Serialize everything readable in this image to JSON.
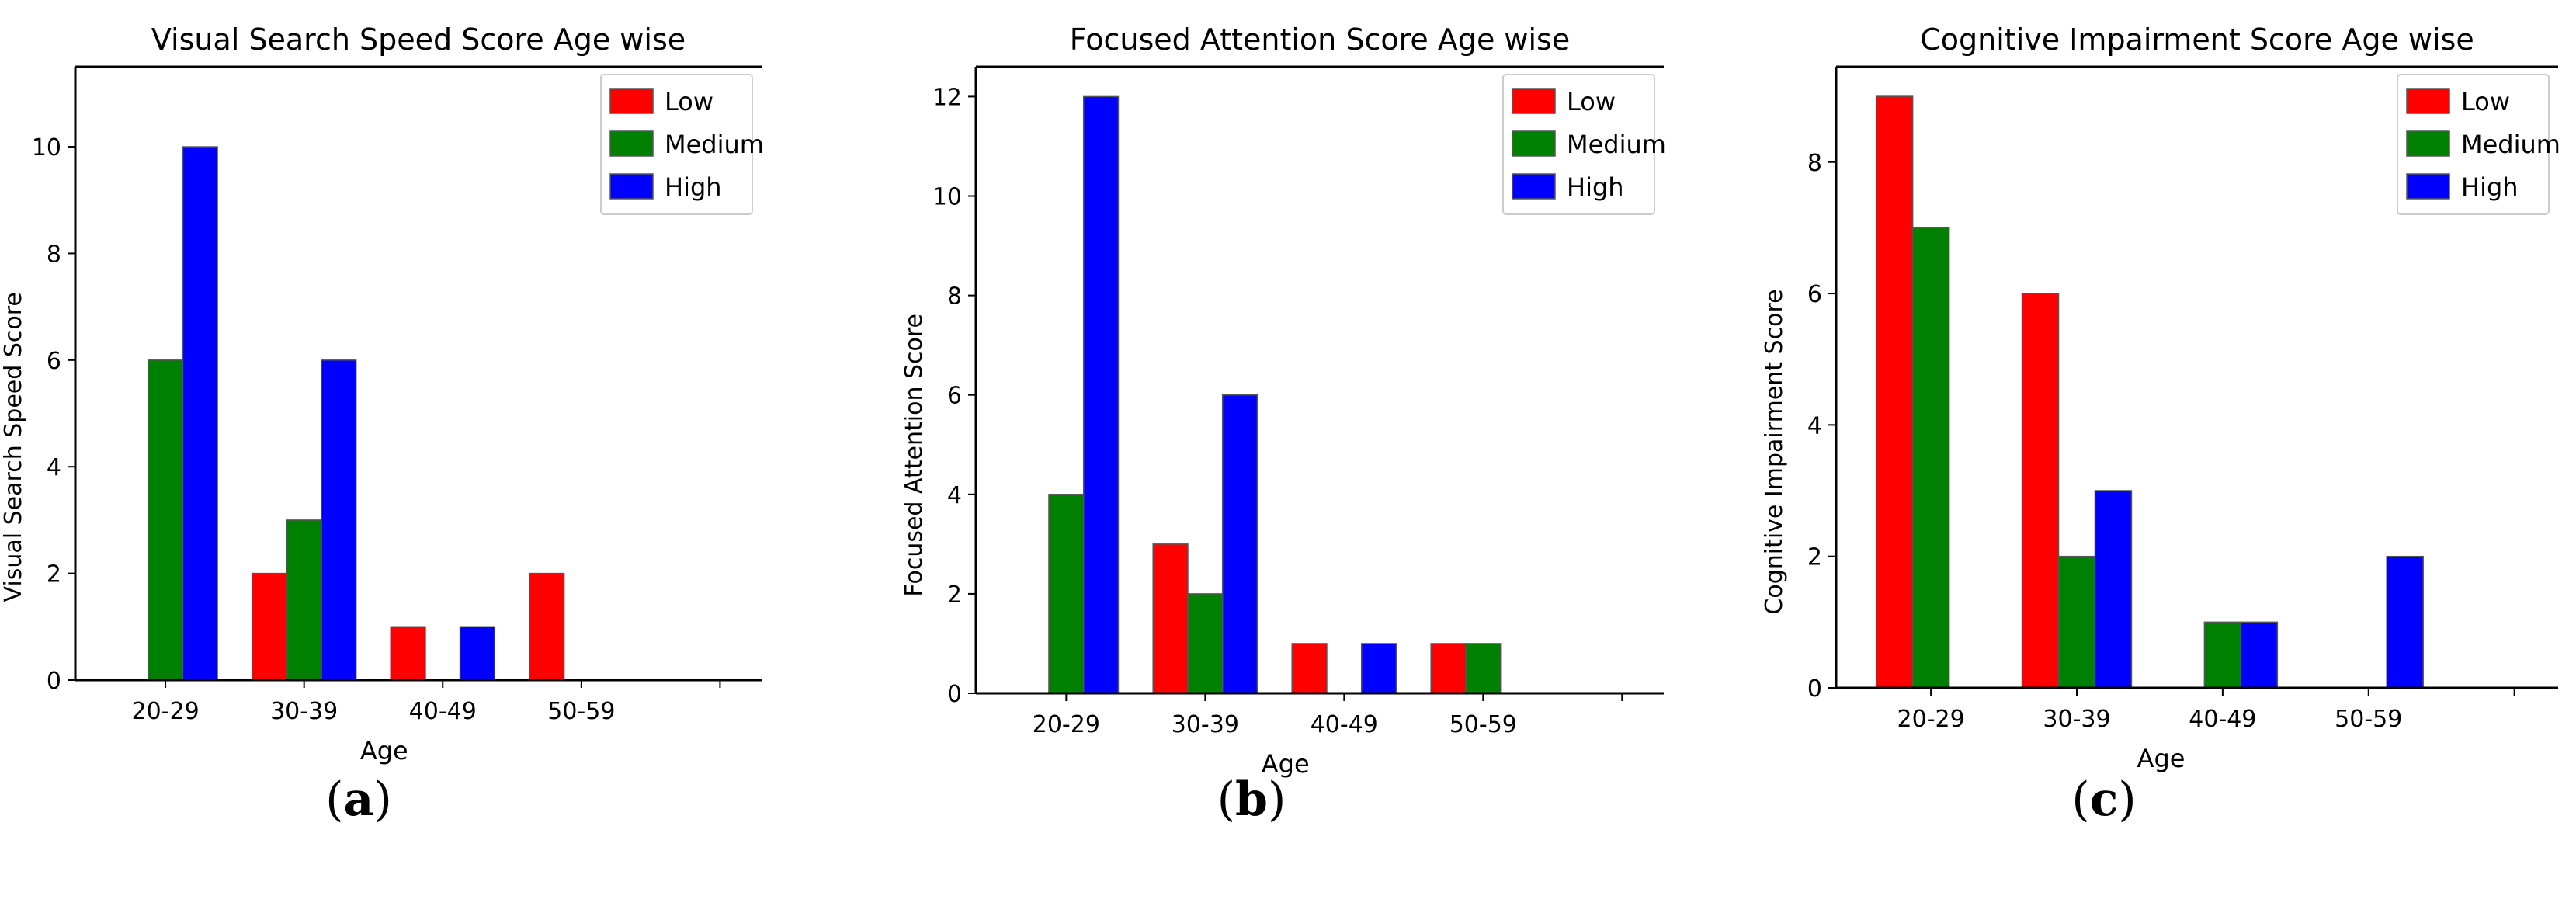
{
  "chart_data": [
    {
      "type": "bar",
      "title": "Visual Search Speed Score Age wise",
      "xlabel": "Age",
      "ylabel": "Visual Search Speed Score",
      "categories": [
        "20-29",
        "30-39",
        "40-49",
        "50-59"
      ],
      "yticks": [
        0,
        2,
        4,
        6,
        8,
        10
      ],
      "ylim": [
        0,
        11.5
      ],
      "legend_position": "top-right",
      "caption_label": "a",
      "series": [
        {
          "name": "Low",
          "color": "#ff0000",
          "values": [
            0,
            2,
            1,
            2
          ]
        },
        {
          "name": "Medium",
          "color": "#008000",
          "values": [
            6,
            3,
            0,
            0
          ]
        },
        {
          "name": "High",
          "color": "#0000ff",
          "values": [
            10,
            6,
            1,
            0
          ]
        }
      ]
    },
    {
      "type": "bar",
      "title": "Focused Attention Score Age wise",
      "xlabel": "Age",
      "ylabel": "Focused Attention Score",
      "categories": [
        "20-29",
        "30-39",
        "40-49",
        "50-59"
      ],
      "yticks": [
        0,
        2,
        4,
        6,
        8,
        10,
        12
      ],
      "ylim": [
        0,
        12.6
      ],
      "legend_position": "top-right",
      "caption_label": "b",
      "series": [
        {
          "name": "Low",
          "color": "#ff0000",
          "values": [
            0,
            3,
            1,
            1
          ]
        },
        {
          "name": "Medium",
          "color": "#008000",
          "values": [
            4,
            2,
            0,
            1
          ]
        },
        {
          "name": "High",
          "color": "#0000ff",
          "values": [
            12,
            6,
            1,
            0
          ]
        }
      ]
    },
    {
      "type": "bar",
      "title": "Cognitive Impairment Score Age wise",
      "xlabel": "Age",
      "ylabel": "Cognitive Impairment Score",
      "categories": [
        "20-29",
        "30-39",
        "40-49",
        "50-59"
      ],
      "yticks": [
        0,
        2,
        4,
        6,
        8
      ],
      "ylim": [
        0,
        9.45
      ],
      "legend_position": "top-right",
      "caption_label": "c",
      "series": [
        {
          "name": "Low",
          "color": "#ff0000",
          "values": [
            9,
            6,
            0,
            0
          ]
        },
        {
          "name": "Medium",
          "color": "#008000",
          "values": [
            7,
            2,
            1,
            0
          ]
        },
        {
          "name": "High",
          "color": "#0000ff",
          "values": [
            0,
            3,
            1,
            2
          ]
        }
      ]
    }
  ]
}
